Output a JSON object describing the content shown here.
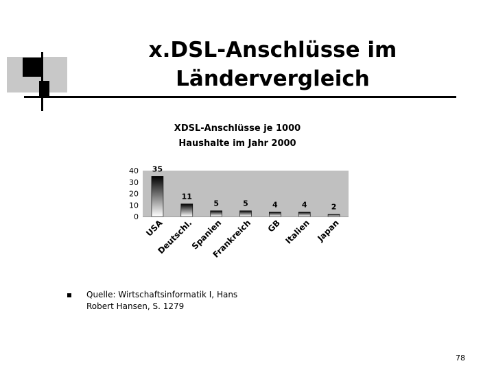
{
  "slide": {
    "title_line1": "x.DSL-Anschlüsse im",
    "title_line2": "Ländervergleich",
    "source_line1": "Quelle: Wirtschaftsinformatik I, Hans",
    "source_line2": "Robert Hansen, S. 1279",
    "page_number": "78"
  },
  "chart_data": {
    "type": "bar",
    "title_lines": [
      "XDSL-Anschlüsse je 1000",
      "Haushalte im Jahr 2000"
    ],
    "categories": [
      "USA",
      "Deutschl.",
      "Spanien",
      "Frankreich",
      "GB",
      "Italien",
      "Japan"
    ],
    "values": [
      35,
      11,
      5,
      5,
      4,
      4,
      2
    ],
    "y_ticks": [
      "40",
      "30",
      "20",
      "10",
      "0"
    ],
    "ylim": [
      0,
      40
    ],
    "grid": false,
    "legend": false,
    "colors": {
      "plot_bg": "#c0c0c0",
      "bar_dark": "#000000",
      "bar_light": "#ffffff"
    }
  }
}
